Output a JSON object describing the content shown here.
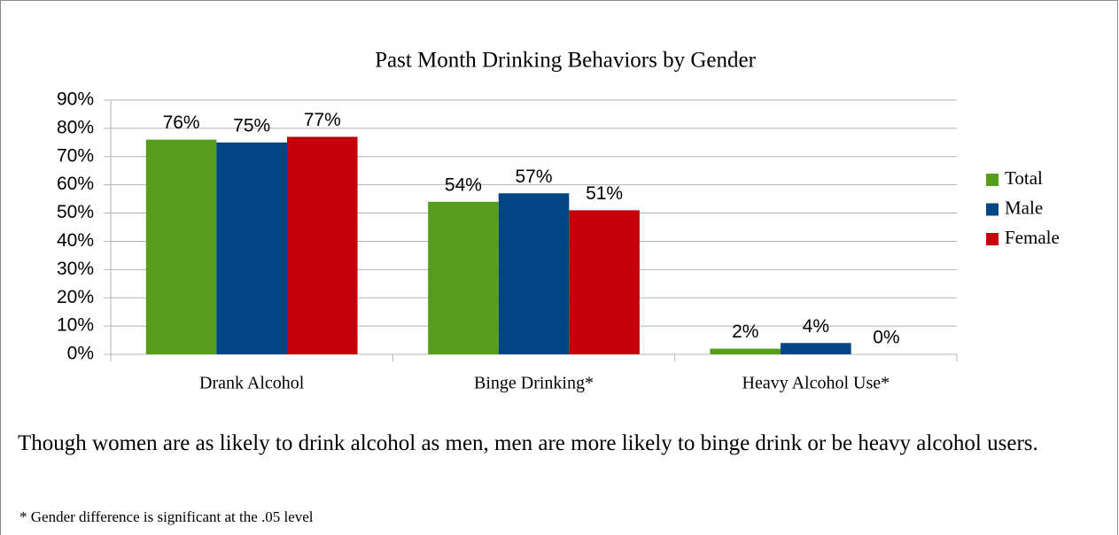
{
  "chart_data": {
    "type": "bar",
    "title": "Past Month Drinking Behaviors by Gender",
    "categories": [
      "Drank Alcohol",
      "Binge Drinking*",
      "Heavy Alcohol Use*"
    ],
    "series": [
      {
        "name": "Total",
        "color": "#579d1c",
        "values": [
          76,
          54,
          2
        ],
        "value_labels": [
          "76%",
          "54%",
          "2%"
        ]
      },
      {
        "name": "Male",
        "color": "#004586",
        "values": [
          75,
          57,
          4
        ],
        "value_labels": [
          "75%",
          "57%",
          "4%"
        ]
      },
      {
        "name": "Female",
        "color": "#c5000b",
        "values": [
          77,
          51,
          0
        ],
        "value_labels": [
          "77%",
          "51%",
          "0%"
        ]
      }
    ],
    "ylim": [
      0,
      90
    ],
    "yticks": [
      {
        "value": 0,
        "label": "0%"
      },
      {
        "value": 10,
        "label": "10%"
      },
      {
        "value": 20,
        "label": "20%"
      },
      {
        "value": 30,
        "label": "30%"
      },
      {
        "value": 40,
        "label": "40%"
      },
      {
        "value": 50,
        "label": "50%"
      },
      {
        "value": 60,
        "label": "60%"
      },
      {
        "value": 70,
        "label": "70%"
      },
      {
        "value": 80,
        "label": "80%"
      },
      {
        "value": 90,
        "label": "90%"
      }
    ],
    "grid": true,
    "legend": "right"
  },
  "caption": "Though women are as likely to drink alcohol as men, men are more likely to binge drink or be heavy alcohol users.",
  "footnote": "* Gender difference is significant at the .05 level"
}
